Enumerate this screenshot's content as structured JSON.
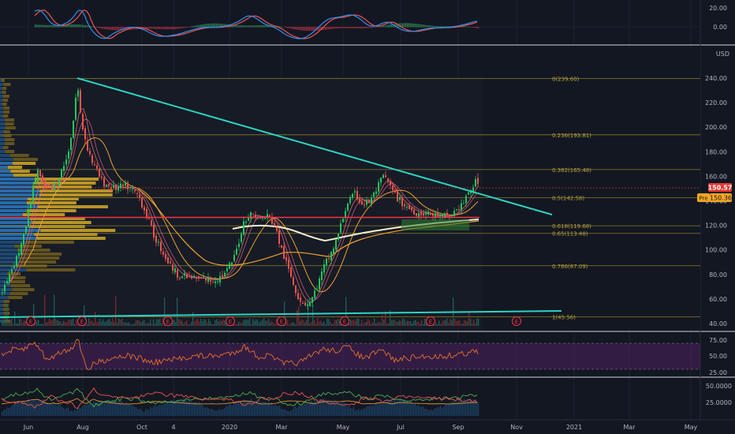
{
  "colors": {
    "background": "#131722",
    "separator": "#d1d4dc",
    "grid": "#1c2030",
    "up": "#26a69a",
    "up_bright": "#22c55e",
    "down": "#ef5350",
    "trendline": "#2dd4c0",
    "fib_line": "#8a7a2a",
    "fib_text": "#b8a23c",
    "support_line": "#f23645",
    "ma200": "#f5f0d0",
    "ma_orange": "#f0a030",
    "rsi_band": "#4a1f5c",
    "rsi_line": "#e8702a",
    "vp_blue": "#2a6fb0",
    "vp_gold": "#c9a227",
    "price_badge": "#e53935",
    "pre_badge": "#f5a623",
    "macd_blue": "#2f8ff0",
    "macd_red": "#ef5350",
    "adx_green": "#4caf50"
  },
  "axis": {
    "currency": "USD",
    "main_ticks": [
      "240.00",
      "220.00",
      "200.00",
      "180.00",
      "160.00",
      "140.00",
      "120.00",
      "100.00",
      "80.00",
      "60.00",
      "40.00"
    ],
    "macd_ticks": [
      "20.00",
      "0.00"
    ],
    "rsi_ticks": [
      "75.00",
      "50.00",
      "25.00"
    ],
    "adx_ticks": [
      "50.0000",
      "25.0000"
    ],
    "x_labels": [
      "Jun",
      "Aug",
      "Oct",
      "4",
      "2020",
      "Mar",
      "May",
      "Jul",
      "Sep",
      "Nov",
      "2021",
      "Mar",
      "May"
    ]
  },
  "fib_levels": [
    {
      "label": "0(239.60)",
      "price": 239.6
    },
    {
      "label": "0.236(193.81)",
      "price": 193.81
    },
    {
      "label": "0.382(165.48)",
      "price": 165.48
    },
    {
      "label": "0.5(142.58)",
      "price": 142.58
    },
    {
      "label": "0.618(119.68)",
      "price": 119.68
    },
    {
      "label": "0.65(113.48)",
      "price": 113.48
    },
    {
      "label": "0.786(87.09)",
      "price": 87.09
    },
    {
      "label": "1(45.56)",
      "price": 45.56
    }
  ],
  "price_labels": {
    "last": "150.57",
    "pre_tag": "Pre",
    "pre": "150.36"
  },
  "earnings_marker": "E",
  "chart_data": {
    "type": "candlestick",
    "symbol_currency": "USD",
    "main_ylim": [
      40,
      250
    ],
    "fibonacci": [
      239.6,
      193.81,
      165.48,
      142.58,
      119.68,
      113.48,
      87.09,
      45.56
    ],
    "support_level": 125,
    "last_price": 150.57,
    "premarket_price": 150.36,
    "approx_closes": [
      {
        "x": "Jun",
        "y": 65
      },
      {
        "x": "Jul",
        "y": 140
      },
      {
        "x": "Aug",
        "y": 235
      },
      {
        "x": "Aug",
        "y": 180
      },
      {
        "x": "Sep",
        "y": 155
      },
      {
        "x": "Oct",
        "y": 140
      },
      {
        "x": "Nov",
        "y": 100
      },
      {
        "x": "Dec",
        "y": 76
      },
      {
        "x": "2020",
        "y": 130
      },
      {
        "x": "Feb",
        "y": 118
      },
      {
        "x": "Mar",
        "y": 56
      },
      {
        "x": "Apr",
        "y": 100
      },
      {
        "x": "May",
        "y": 140
      },
      {
        "x": "Jun",
        "y": 160
      },
      {
        "x": "Jul",
        "y": 130
      },
      {
        "x": "Aug",
        "y": 128
      },
      {
        "x": "Sep",
        "y": 150
      }
    ],
    "rsi_levels": [
      70,
      30
    ],
    "macd_ylim": [
      -10,
      25
    ],
    "adx_ticks": [
      50,
      25
    ]
  }
}
